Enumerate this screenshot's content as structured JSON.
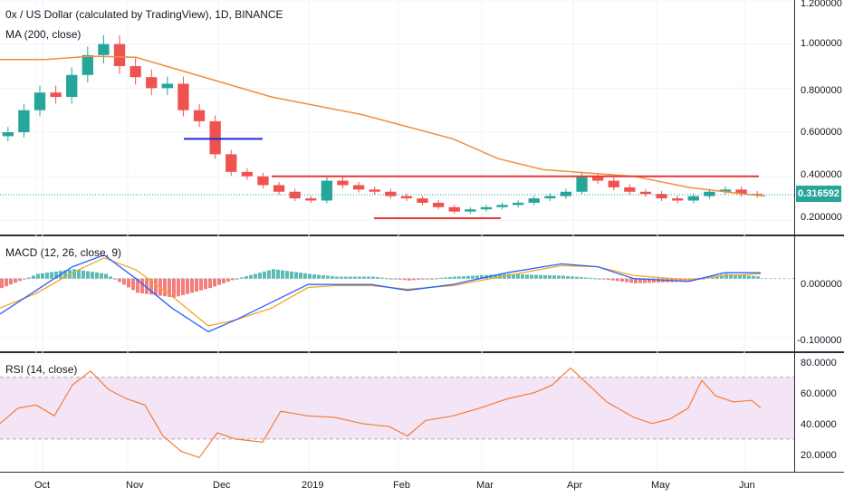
{
  "header": {
    "title": "0x / US Dollar (calculated by TradingView), 1D, BINANCE",
    "ma_label": "MA (200, close)",
    "macd_label": "MACD (12, 26, close, 9)",
    "rsi_label": "RSI (14, close)",
    "last_price": "0.316592"
  },
  "colors": {
    "up": "#26a69a",
    "down": "#ef5350",
    "ma": "#f28e3c",
    "macd": "#2962ff",
    "signal": "#f5a623",
    "rsi": "#f57c36",
    "rsi_band": "#f3e5f5",
    "hline_red": "#e53935",
    "hline_blue": "#1e2bd8"
  },
  "chart_data": [
    {
      "type": "candlestick",
      "name": "price",
      "y_ticks": [
        "1.200000",
        "1.000000",
        "0.800000",
        "0.600000",
        "0.400000",
        "0.200000"
      ],
      "ylim": [
        0.14,
        1.2
      ],
      "x_ticks": [
        "Oct",
        "Nov",
        "Dec",
        "2019",
        "Feb",
        "Mar",
        "Apr",
        "May",
        "Jun"
      ],
      "ma_200": [
        [
          0,
          0.93
        ],
        [
          50,
          0.93
        ],
        [
          100,
          0.945
        ],
        [
          150,
          0.94
        ],
        [
          200,
          0.88
        ],
        [
          300,
          0.76
        ],
        [
          400,
          0.68
        ],
        [
          500,
          0.57
        ],
        [
          550,
          0.48
        ],
        [
          600,
          0.43
        ],
        [
          700,
          0.4
        ],
        [
          760,
          0.35
        ],
        [
          800,
          0.33
        ],
        [
          845,
          0.31
        ]
      ],
      "closes": [
        0.6,
        0.7,
        0.78,
        0.76,
        0.86,
        0.95,
        1.0,
        0.9,
        0.85,
        0.8,
        0.82,
        0.7,
        0.65,
        0.5,
        0.42,
        0.4,
        0.36,
        0.33,
        0.3,
        0.29,
        0.38,
        0.36,
        0.34,
        0.33,
        0.31,
        0.3,
        0.28,
        0.26,
        0.24,
        0.25,
        0.26,
        0.27,
        0.28,
        0.3,
        0.31,
        0.33,
        0.4,
        0.38,
        0.35,
        0.33,
        0.32,
        0.3,
        0.29,
        0.31,
        0.33,
        0.34,
        0.32,
        0.316
      ],
      "annotations": [
        {
          "kind": "hline",
          "color": "blue",
          "y": 0.57,
          "x_from": 203,
          "x_to": 290
        },
        {
          "kind": "hline",
          "color": "red",
          "y": 0.4,
          "x_from": 300,
          "x_to": 838
        },
        {
          "kind": "hline",
          "color": "red",
          "y": 0.21,
          "x_from": 413,
          "x_to": 553
        }
      ]
    },
    {
      "type": "line",
      "name": "MACD",
      "y_ticks": [
        "0.000000",
        "-0.100000"
      ],
      "ylim": [
        -0.12,
        0.07
      ],
      "macd": [
        [
          0,
          -0.06
        ],
        [
          40,
          -0.02
        ],
        [
          80,
          0.02
        ],
        [
          115,
          0.04
        ],
        [
          150,
          0.0
        ],
        [
          190,
          -0.05
        ],
        [
          230,
          -0.09
        ],
        [
          260,
          -0.07
        ],
        [
          300,
          -0.04
        ],
        [
          340,
          -0.01
        ],
        [
          370,
          -0.01
        ],
        [
          410,
          -0.01
        ],
        [
          450,
          -0.02
        ],
        [
          500,
          -0.01
        ],
        [
          560,
          0.01
        ],
        [
          620,
          0.025
        ],
        [
          660,
          0.02
        ],
        [
          700,
          0.0
        ],
        [
          760,
          -0.005
        ],
        [
          800,
          0.01
        ],
        [
          840,
          0.01
        ]
      ],
      "signal": [
        [
          0,
          -0.05
        ],
        [
          40,
          -0.025
        ],
        [
          80,
          0.01
        ],
        [
          115,
          0.035
        ],
        [
          150,
          0.015
        ],
        [
          190,
          -0.03
        ],
        [
          230,
          -0.08
        ],
        [
          260,
          -0.07
        ],
        [
          300,
          -0.05
        ],
        [
          340,
          -0.015
        ],
        [
          370,
          -0.012
        ],
        [
          410,
          -0.012
        ],
        [
          450,
          -0.018
        ],
        [
          500,
          -0.012
        ],
        [
          560,
          0.005
        ],
        [
          620,
          0.022
        ],
        [
          660,
          0.02
        ],
        [
          700,
          0.005
        ],
        [
          760,
          -0.002
        ],
        [
          800,
          0.005
        ],
        [
          840,
          0.008
        ]
      ]
    },
    {
      "type": "line",
      "name": "RSI",
      "y_ticks": [
        "80.0000",
        "60.0000",
        "40.0000",
        "20.0000"
      ],
      "ylim": [
        10,
        85
      ],
      "band": [
        30,
        70
      ],
      "rsi": [
        [
          0,
          40
        ],
        [
          20,
          50
        ],
        [
          40,
          52
        ],
        [
          60,
          45
        ],
        [
          80,
          65
        ],
        [
          100,
          74
        ],
        [
          120,
          62
        ],
        [
          140,
          56
        ],
        [
          160,
          52
        ],
        [
          180,
          32
        ],
        [
          200,
          22
        ],
        [
          220,
          18
        ],
        [
          240,
          34
        ],
        [
          260,
          30
        ],
        [
          290,
          28
        ],
        [
          310,
          48
        ],
        [
          340,
          45
        ],
        [
          370,
          44
        ],
        [
          400,
          40
        ],
        [
          430,
          38
        ],
        [
          450,
          32
        ],
        [
          470,
          42
        ],
        [
          500,
          45
        ],
        [
          530,
          50
        ],
        [
          560,
          56
        ],
        [
          590,
          60
        ],
        [
          610,
          65
        ],
        [
          630,
          76
        ],
        [
          650,
          65
        ],
        [
          670,
          54
        ],
        [
          700,
          44
        ],
        [
          720,
          40
        ],
        [
          740,
          43
        ],
        [
          760,
          50
        ],
        [
          775,
          68
        ],
        [
          790,
          58
        ],
        [
          810,
          54
        ],
        [
          830,
          55
        ],
        [
          840,
          50
        ]
      ]
    }
  ]
}
